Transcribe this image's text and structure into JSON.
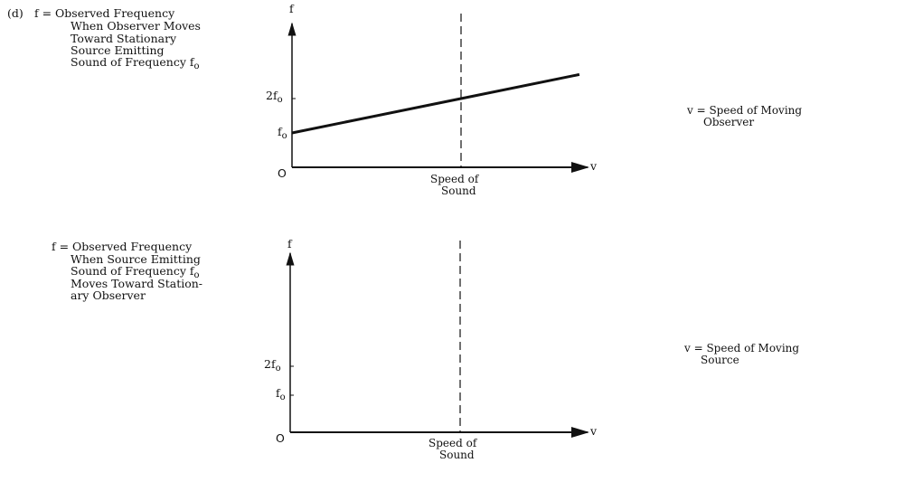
{
  "graph1": {
    "part_label": "(d)",
    "description_lines": [
      "f = Observed Frequency",
      "When Observer Moves",
      "Toward Stationary",
      "Source Emitting",
      "Sound of Frequency f"
    ],
    "description_last_subscript": "o",
    "y_axis_label": "f",
    "x_axis_label": "v",
    "origin_label": "O",
    "tick_2f0": "2f",
    "tick_f0": "f",
    "tick_subscript": "o",
    "dashed_label_line1": "Speed of",
    "dashed_label_line2": "Sound",
    "v_definition_line1": "v = Speed of Moving",
    "v_definition_line2": "Observer"
  },
  "graph2": {
    "description_lines": [
      "f = Observed Frequency",
      "When Source Emitting",
      "Sound of Frequency f",
      "Moves Toward Station-",
      "ary Observer"
    ],
    "description_line3_subscript": "o",
    "y_axis_label": "f",
    "x_axis_label": "v",
    "origin_label": "O",
    "tick_2f0": "2f",
    "tick_f0": "f",
    "tick_subscript": "o",
    "dashed_label_line1": "Speed of",
    "dashed_label_line2": "Sound",
    "v_definition_line1": "v = Speed of Moving",
    "v_definition_line2": "Source"
  },
  "chart_data": [
    {
      "type": "line",
      "xlabel": "v",
      "ylabel": "f",
      "x_units": "speed of sound",
      "y_units": "f0",
      "series": [
        {
          "x": [
            0,
            1,
            1.7
          ],
          "y": [
            1,
            2,
            2.7
          ]
        }
      ],
      "reference_line_x": 1
    },
    {
      "type": "line",
      "xlabel": "v",
      "ylabel": "f",
      "x_units": "speed of sound",
      "y_units": "f0",
      "series": [],
      "reference_line_x": 1
    }
  ]
}
